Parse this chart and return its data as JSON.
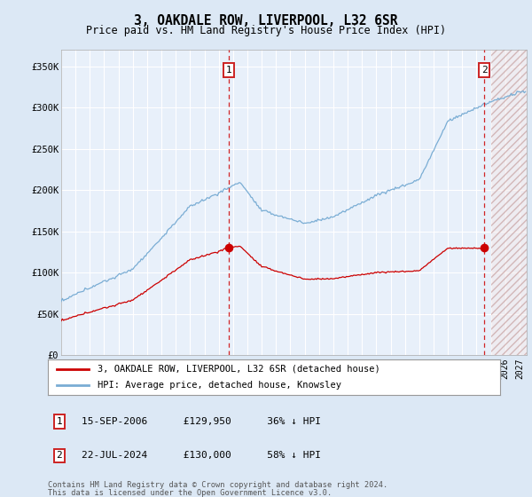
{
  "title": "3, OAKDALE ROW, LIVERPOOL, L32 6SR",
  "subtitle": "Price paid vs. HM Land Registry's House Price Index (HPI)",
  "hpi_label": "HPI: Average price, detached house, Knowsley",
  "property_label": "3, OAKDALE ROW, LIVERPOOL, L32 6SR (detached house)",
  "ylabel_ticks": [
    "£0",
    "£50K",
    "£100K",
    "£150K",
    "£200K",
    "£250K",
    "£300K",
    "£350K"
  ],
  "ylim": [
    0,
    370000
  ],
  "xlim_start": 1995.0,
  "xlim_end": 2027.5,
  "t1_date": 2006.71,
  "t1_price": 129950,
  "t2_date": 2024.55,
  "t2_price": 130000,
  "t1_row": "15-SEP-2006      £129,950      36% ↓ HPI",
  "t2_row": "22-JUL-2024      £130,000      58% ↓ HPI",
  "footnote1": "Contains HM Land Registry data © Crown copyright and database right 2024.",
  "footnote2": "This data is licensed under the Open Government Licence v3.0.",
  "hpi_color": "#7aadd4",
  "property_color": "#cc0000",
  "bg_color": "#dce8f5",
  "plot_bg": "#e8f0fa",
  "grid_color": "#ffffff",
  "hatch_bg": "#f0d8d8"
}
